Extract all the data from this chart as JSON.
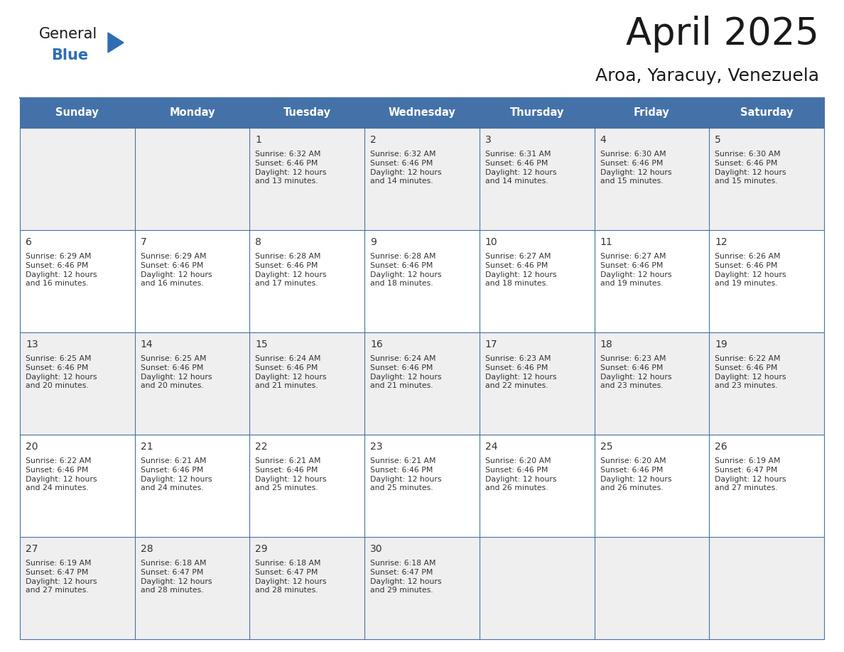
{
  "title": "April 2025",
  "subtitle": "Aroa, Yaracuy, Venezuela",
  "days_of_week": [
    "Sunday",
    "Monday",
    "Tuesday",
    "Wednesday",
    "Thursday",
    "Friday",
    "Saturday"
  ],
  "header_bg": "#4472a8",
  "header_text": "#ffffff",
  "cell_bg_odd": "#efefef",
  "cell_bg_even": "#ffffff",
  "border_color": "#4472a8",
  "text_color": "#333333",
  "title_color": "#1a1a1a",
  "calendar_data": [
    [
      {
        "day": "",
        "sunrise": "",
        "sunset": "",
        "daylight": ""
      },
      {
        "day": "",
        "sunrise": "",
        "sunset": "",
        "daylight": ""
      },
      {
        "day": "1",
        "sunrise": "6:32 AM",
        "sunset": "6:46 PM",
        "daylight": "12 hours\nand 13 minutes."
      },
      {
        "day": "2",
        "sunrise": "6:32 AM",
        "sunset": "6:46 PM",
        "daylight": "12 hours\nand 14 minutes."
      },
      {
        "day": "3",
        "sunrise": "6:31 AM",
        "sunset": "6:46 PM",
        "daylight": "12 hours\nand 14 minutes."
      },
      {
        "day": "4",
        "sunrise": "6:30 AM",
        "sunset": "6:46 PM",
        "daylight": "12 hours\nand 15 minutes."
      },
      {
        "day": "5",
        "sunrise": "6:30 AM",
        "sunset": "6:46 PM",
        "daylight": "12 hours\nand 15 minutes."
      }
    ],
    [
      {
        "day": "6",
        "sunrise": "6:29 AM",
        "sunset": "6:46 PM",
        "daylight": "12 hours\nand 16 minutes."
      },
      {
        "day": "7",
        "sunrise": "6:29 AM",
        "sunset": "6:46 PM",
        "daylight": "12 hours\nand 16 minutes."
      },
      {
        "day": "8",
        "sunrise": "6:28 AM",
        "sunset": "6:46 PM",
        "daylight": "12 hours\nand 17 minutes."
      },
      {
        "day": "9",
        "sunrise": "6:28 AM",
        "sunset": "6:46 PM",
        "daylight": "12 hours\nand 18 minutes."
      },
      {
        "day": "10",
        "sunrise": "6:27 AM",
        "sunset": "6:46 PM",
        "daylight": "12 hours\nand 18 minutes."
      },
      {
        "day": "11",
        "sunrise": "6:27 AM",
        "sunset": "6:46 PM",
        "daylight": "12 hours\nand 19 minutes."
      },
      {
        "day": "12",
        "sunrise": "6:26 AM",
        "sunset": "6:46 PM",
        "daylight": "12 hours\nand 19 minutes."
      }
    ],
    [
      {
        "day": "13",
        "sunrise": "6:25 AM",
        "sunset": "6:46 PM",
        "daylight": "12 hours\nand 20 minutes."
      },
      {
        "day": "14",
        "sunrise": "6:25 AM",
        "sunset": "6:46 PM",
        "daylight": "12 hours\nand 20 minutes."
      },
      {
        "day": "15",
        "sunrise": "6:24 AM",
        "sunset": "6:46 PM",
        "daylight": "12 hours\nand 21 minutes."
      },
      {
        "day": "16",
        "sunrise": "6:24 AM",
        "sunset": "6:46 PM",
        "daylight": "12 hours\nand 21 minutes."
      },
      {
        "day": "17",
        "sunrise": "6:23 AM",
        "sunset": "6:46 PM",
        "daylight": "12 hours\nand 22 minutes."
      },
      {
        "day": "18",
        "sunrise": "6:23 AM",
        "sunset": "6:46 PM",
        "daylight": "12 hours\nand 23 minutes."
      },
      {
        "day": "19",
        "sunrise": "6:22 AM",
        "sunset": "6:46 PM",
        "daylight": "12 hours\nand 23 minutes."
      }
    ],
    [
      {
        "day": "20",
        "sunrise": "6:22 AM",
        "sunset": "6:46 PM",
        "daylight": "12 hours\nand 24 minutes."
      },
      {
        "day": "21",
        "sunrise": "6:21 AM",
        "sunset": "6:46 PM",
        "daylight": "12 hours\nand 24 minutes."
      },
      {
        "day": "22",
        "sunrise": "6:21 AM",
        "sunset": "6:46 PM",
        "daylight": "12 hours\nand 25 minutes."
      },
      {
        "day": "23",
        "sunrise": "6:21 AM",
        "sunset": "6:46 PM",
        "daylight": "12 hours\nand 25 minutes."
      },
      {
        "day": "24",
        "sunrise": "6:20 AM",
        "sunset": "6:46 PM",
        "daylight": "12 hours\nand 26 minutes."
      },
      {
        "day": "25",
        "sunrise": "6:20 AM",
        "sunset": "6:46 PM",
        "daylight": "12 hours\nand 26 minutes."
      },
      {
        "day": "26",
        "sunrise": "6:19 AM",
        "sunset": "6:47 PM",
        "daylight": "12 hours\nand 27 minutes."
      }
    ],
    [
      {
        "day": "27",
        "sunrise": "6:19 AM",
        "sunset": "6:47 PM",
        "daylight": "12 hours\nand 27 minutes."
      },
      {
        "day": "28",
        "sunrise": "6:18 AM",
        "sunset": "6:47 PM",
        "daylight": "12 hours\nand 28 minutes."
      },
      {
        "day": "29",
        "sunrise": "6:18 AM",
        "sunset": "6:47 PM",
        "daylight": "12 hours\nand 28 minutes."
      },
      {
        "day": "30",
        "sunrise": "6:18 AM",
        "sunset": "6:47 PM",
        "daylight": "12 hours\nand 29 minutes."
      },
      {
        "day": "",
        "sunrise": "",
        "sunset": "",
        "daylight": ""
      },
      {
        "day": "",
        "sunrise": "",
        "sunset": "",
        "daylight": ""
      },
      {
        "day": "",
        "sunrise": "",
        "sunset": "",
        "daylight": ""
      }
    ]
  ],
  "logo_text_general": "General",
  "logo_text_blue": "Blue",
  "logo_color_general": "#1a1a1a",
  "logo_color_blue": "#2e6db4",
  "logo_triangle_color": "#2e6db4",
  "fig_width": 11.88,
  "fig_height": 9.18,
  "dpi": 100
}
